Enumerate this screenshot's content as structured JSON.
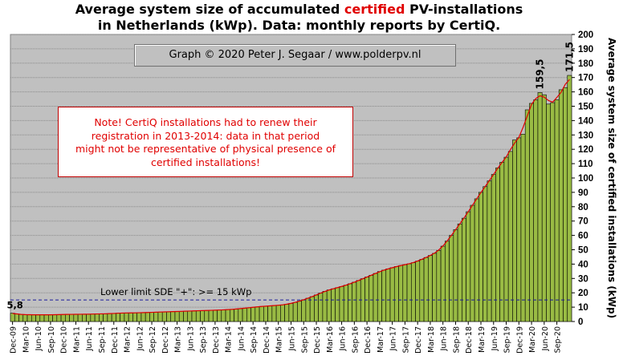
{
  "title": {
    "line1_pre": "Average system size of accumulated ",
    "line1_highlight": "certified",
    "line1_post": " PV-installations",
    "line2": "in Netherlands (kWp). Data: monthly reports by CertiQ."
  },
  "credit": "Graph © 2020 Peter J. Segaar / www.polderpv.nl",
  "note": [
    "Note! CertiQ installations had to renew their",
    "registration in 2013-2014: data in that period",
    "might not be representative of physical presence of",
    "certified installations!"
  ],
  "colors": {
    "plot_bg": "#c0c0c0",
    "bar_fill": "#99bb44",
    "bar_stroke": "#000000",
    "trend": "#e00000",
    "limit_line": "#1a1a9c",
    "title_highlight": "#e00000"
  },
  "chart_data": {
    "type": "bar",
    "title": "Average system size of accumulated certified PV-installations in Netherlands (kWp). Data: monthly reports by CertiQ.",
    "xlabel": "",
    "ylabel": "Average system size of certified installations (kWp)",
    "ylim": [
      0,
      200
    ],
    "ytick_step": 10,
    "grid": true,
    "x_tick_labels": [
      "Dec-09",
      "Mar-10",
      "Jun-10",
      "Sep-10",
      "Dec-10",
      "Mar-11",
      "Jun-11",
      "Sep-11",
      "Dec-11",
      "Mar-12",
      "Jun-12",
      "Sep-12",
      "Dec-12",
      "Mar-13",
      "Jun-13",
      "Sep-13",
      "Dec-13",
      "Mar-14",
      "Jun-14",
      "Sep-14",
      "Dec-14",
      "Mar-15",
      "Jun-15",
      "Sep-15",
      "Dec-15",
      "Mar-16",
      "Jun-16",
      "Sep-16",
      "Dec-16",
      "Mar-17",
      "Jun-17",
      "Sep-17",
      "Dec-17",
      "Mar-18",
      "Jun-18",
      "Sep-18",
      "Dec-18",
      "Mar-19",
      "Jun-19",
      "Sep-19",
      "Dec-19",
      "Mar-20",
      "Jun-20",
      "Sep-20"
    ],
    "series": [
      {
        "values": [
          5.8,
          5.2,
          4.9,
          4.8,
          4.7,
          4.7,
          4.7,
          4.7,
          4.7,
          4.7,
          4.7,
          4.8,
          4.9,
          5.0,
          5.0,
          5.0,
          5.1,
          5.1,
          5.1,
          5.2,
          5.3,
          5.3,
          5.4,
          5.5,
          5.6,
          5.8,
          5.9,
          6.0,
          6.0,
          6.0,
          6.1,
          6.2,
          6.3,
          6.4,
          6.5,
          6.6,
          6.7,
          6.8,
          6.9,
          7.0,
          7.1,
          7.2,
          7.3,
          7.4,
          7.5,
          7.6,
          7.7,
          7.8,
          7.9,
          8.0,
          8.1,
          8.3,
          8.5,
          8.7,
          9.0,
          9.3,
          9.6,
          9.9,
          10.2,
          10.5,
          10.7,
          10.9,
          11.1,
          11.3,
          11.6,
          12.0,
          12.6,
          13.3,
          14.2,
          15.2,
          16.2,
          17.3,
          18.5,
          19.8,
          21.0,
          22.0,
          22.8,
          23.6,
          24.4,
          25.3,
          26.3,
          27.4,
          28.6,
          29.8,
          31.0,
          32.2,
          33.5,
          34.8,
          35.8,
          36.7,
          37.5,
          38.3,
          39.0,
          39.6,
          40.2,
          41.0,
          42.1,
          43.3,
          44.6,
          46.0,
          47.5,
          49.5,
          52.5,
          56.0,
          60.0,
          64.0,
          68.0,
          72.0,
          76.5,
          81.0,
          85.5,
          90.0,
          94.0,
          98.0,
          102.5,
          107.0,
          111.0,
          114.5,
          118.5,
          126.5,
          128.0,
          130.5,
          147.5,
          152.0,
          154.5,
          159.5,
          158.0,
          151.5,
          152.5,
          154.5,
          161.5,
          163.0,
          171.5
        ]
      }
    ],
    "trend_line": "red smoothed curve following bar tops",
    "data_labels": [
      {
        "text": "5,8",
        "index": 0
      },
      {
        "text": "159,5",
        "index": 125
      },
      {
        "text": "171,5",
        "index": 132
      }
    ],
    "reference_line": {
      "y": 15,
      "label": "Lower limit  SDE \"+\":    >= 15 kWp"
    }
  }
}
